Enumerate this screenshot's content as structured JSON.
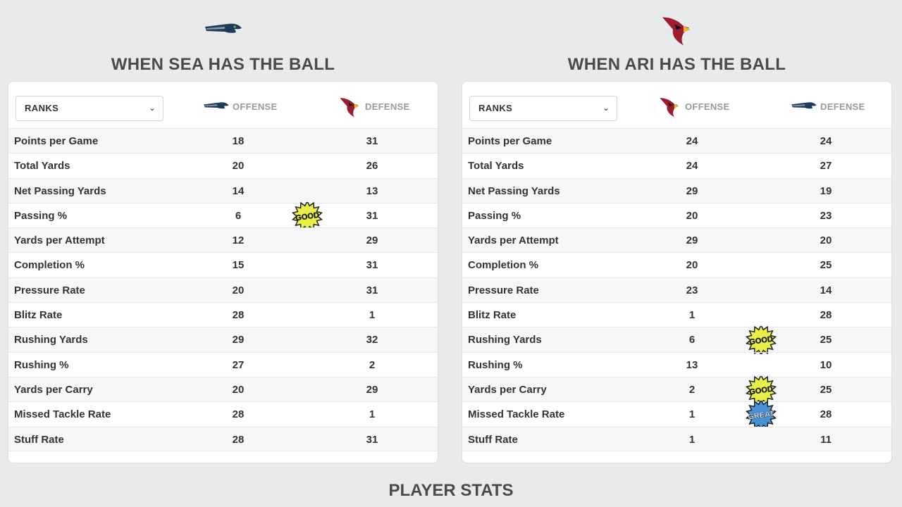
{
  "panels": [
    {
      "title": "WHEN SEA HAS THE BALL",
      "top_logo": "seahawks-logo",
      "select_label": "RANKS",
      "offense_label": "OFFENSE",
      "offense_logo": "seahawks-logo",
      "defense_label": "DEFENSE",
      "defense_logo": "cardinals-logo",
      "rows": [
        {
          "metric": "Points per Game",
          "offense": "18",
          "defense": "31",
          "badge": ""
        },
        {
          "metric": "Total Yards",
          "offense": "20",
          "defense": "26",
          "badge": ""
        },
        {
          "metric": "Net Passing Yards",
          "offense": "14",
          "defense": "13",
          "badge": ""
        },
        {
          "metric": "Passing %",
          "offense": "6",
          "defense": "31",
          "badge": "GOOD"
        },
        {
          "metric": "Yards per Attempt",
          "offense": "12",
          "defense": "29",
          "badge": ""
        },
        {
          "metric": "Completion %",
          "offense": "15",
          "defense": "31",
          "badge": ""
        },
        {
          "metric": "Pressure Rate",
          "offense": "20",
          "defense": "31",
          "badge": ""
        },
        {
          "metric": "Blitz Rate",
          "offense": "28",
          "defense": "1",
          "badge": ""
        },
        {
          "metric": "Rushing Yards",
          "offense": "29",
          "defense": "32",
          "badge": ""
        },
        {
          "metric": "Rushing %",
          "offense": "27",
          "defense": "2",
          "badge": ""
        },
        {
          "metric": "Yards per Carry",
          "offense": "20",
          "defense": "29",
          "badge": ""
        },
        {
          "metric": "Missed Tackle Rate",
          "offense": "28",
          "defense": "1",
          "badge": ""
        },
        {
          "metric": "Stuff Rate",
          "offense": "28",
          "defense": "31",
          "badge": ""
        }
      ]
    },
    {
      "title": "WHEN ARI HAS THE BALL",
      "top_logo": "cardinals-logo",
      "select_label": "RANKS",
      "offense_label": "OFFENSE",
      "offense_logo": "cardinals-logo",
      "defense_label": "DEFENSE",
      "defense_logo": "seahawks-logo",
      "rows": [
        {
          "metric": "Points per Game",
          "offense": "24",
          "defense": "24",
          "badge": ""
        },
        {
          "metric": "Total Yards",
          "offense": "24",
          "defense": "27",
          "badge": ""
        },
        {
          "metric": "Net Passing Yards",
          "offense": "29",
          "defense": "19",
          "badge": ""
        },
        {
          "metric": "Passing %",
          "offense": "20",
          "defense": "23",
          "badge": ""
        },
        {
          "metric": "Yards per Attempt",
          "offense": "29",
          "defense": "20",
          "badge": ""
        },
        {
          "metric": "Completion %",
          "offense": "20",
          "defense": "25",
          "badge": ""
        },
        {
          "metric": "Pressure Rate",
          "offense": "23",
          "defense": "14",
          "badge": ""
        },
        {
          "metric": "Blitz Rate",
          "offense": "1",
          "defense": "28",
          "badge": ""
        },
        {
          "metric": "Rushing Yards",
          "offense": "6",
          "defense": "25",
          "badge": "GOOD"
        },
        {
          "metric": "Rushing %",
          "offense": "13",
          "defense": "10",
          "badge": ""
        },
        {
          "metric": "Yards per Carry",
          "offense": "2",
          "defense": "25",
          "badge": "GOOD"
        },
        {
          "metric": "Missed Tackle Rate",
          "offense": "1",
          "defense": "28",
          "badge": "GREAT"
        },
        {
          "metric": "Stuff Rate",
          "offense": "1",
          "defense": "11",
          "badge": ""
        }
      ]
    }
  ],
  "footer_title": "PLAYER STATS",
  "colors": {
    "background": "#e9eaec",
    "good_badge": "#e8ef4a",
    "great_badge": "#4a90d9",
    "cardinals_red": "#9b1d2f",
    "seahawks_navy": "#1f3b5c",
    "seahawks_gray": "#8c96a0"
  }
}
